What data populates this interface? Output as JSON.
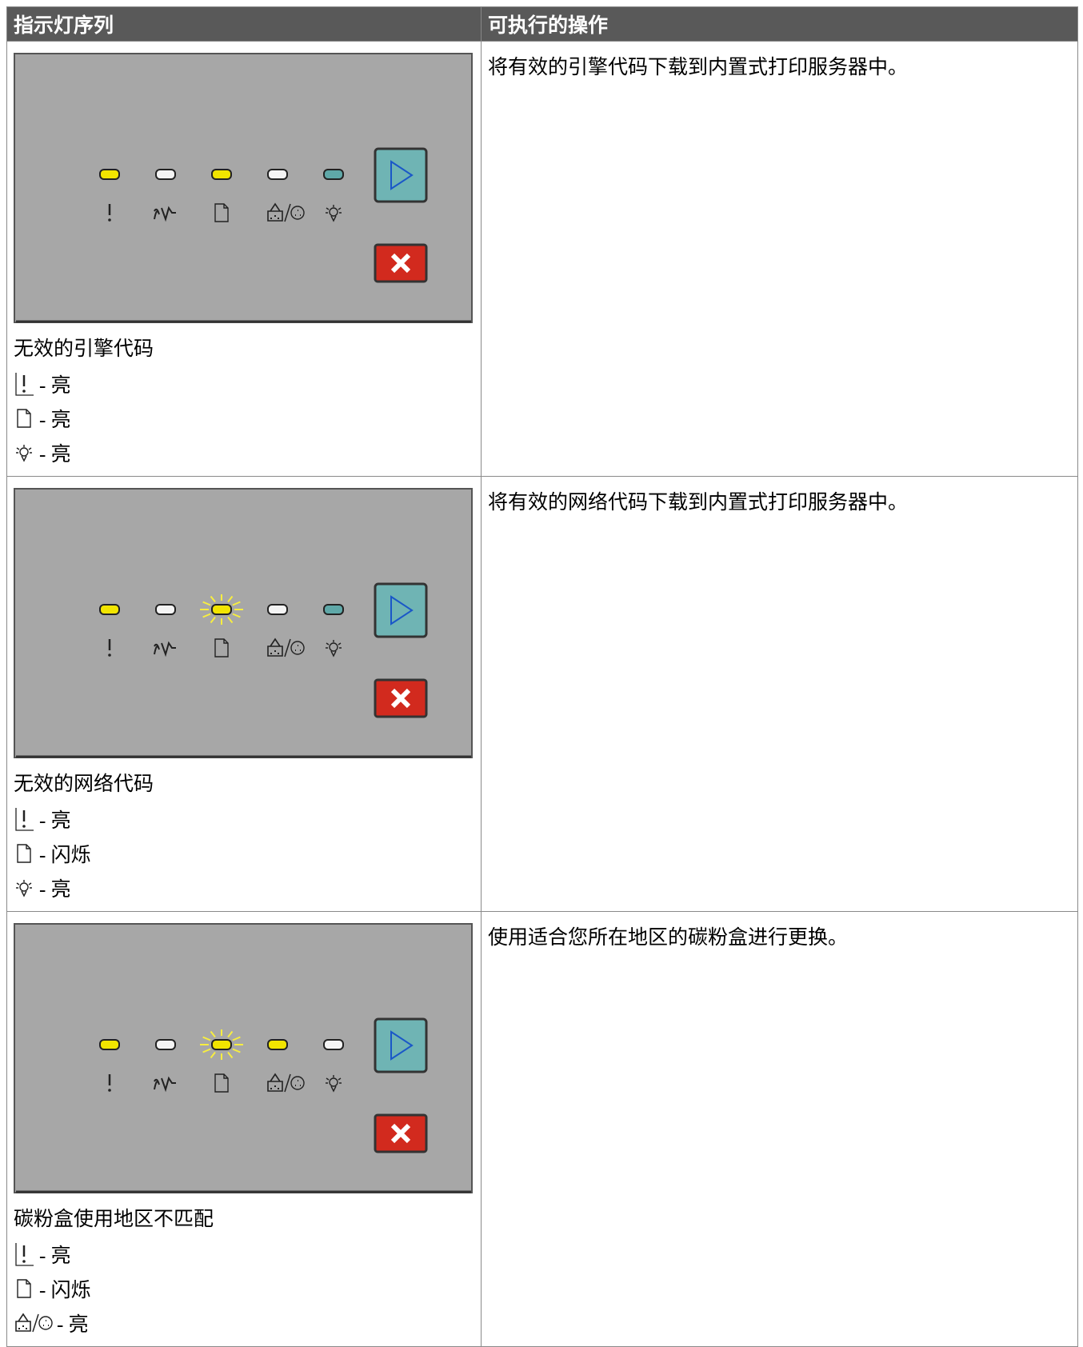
{
  "table": {
    "headers": [
      "指示灯序列",
      "可执行的操作"
    ],
    "rows": [
      {
        "caption": "无效的引擎代码",
        "legend": [
          "- 亮",
          "- 亮",
          "- 亮"
        ],
        "action": "将有效的引擎代码下载到内置式打印服务器中。"
      },
      {
        "caption": "无效的网络代码",
        "legend": [
          "- 亮",
          "- 闪烁",
          "- 亮"
        ],
        "action": "将有效的网络代码下载到内置式打印服务器中。"
      },
      {
        "caption": "碳粉盒使用地区不匹配",
        "legend": [
          "- 亮",
          "- 闪烁",
          "- 亮"
        ],
        "action": "使用适合您所在地区的碳粉盒进行更换。"
      }
    ]
  }
}
